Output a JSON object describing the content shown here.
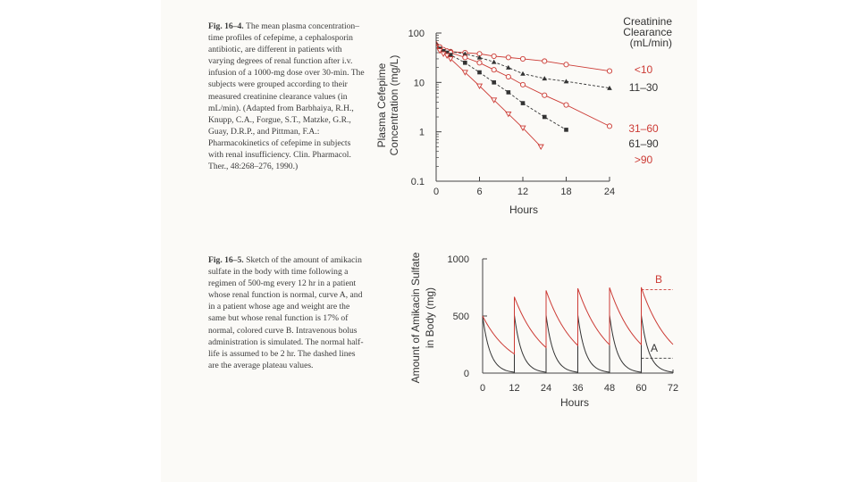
{
  "captions": {
    "fig1": {
      "lead": "Fig. 16–4.",
      "text": "The mean plasma concentration–time profiles of cefepime, a cephalosporin antibiotic, are different in patients with varying degrees of renal function after i.v. infusion of a 1000-mg dose over 30-min. The subjects were grouped according to their measured creatinine clearance values (in mL/min). (Adapted from Barbhaiya, R.H., Knupp, C.A., Forgue, S.T., Matzke, G.R., Guay, D.R.P., and Pittman, F.A.: Pharmacokinetics of cefepime in subjects with renal insufficiency. Clin. Pharmacol. Ther., 48:268–276, 1990.)"
    },
    "fig2": {
      "lead": "Fig. 16–5.",
      "text": "Sketch of the amount of amikacin sulfate in the body with time following a regimen of 500-mg every 12 hr in a patient whose renal function is normal, curve A, and in a patient whose age and weight are the same but whose renal function is 17% of normal, colored curve B. Intravenous bolus administration is simulated. The normal half-life is assumed to be 2 hr. The dashed lines are the average plateau values."
    }
  },
  "colors": {
    "red": "#cc3b35",
    "black": "#333333"
  },
  "chart_data": [
    {
      "type": "line",
      "ylabel_line1": "Plasma Cefepime",
      "ylabel_line2": "Concentration (mg/L)",
      "xlabel": "Hours",
      "log_y": true,
      "ylim": [
        0.1,
        100
      ],
      "xlim": [
        0,
        24
      ],
      "x_ticks": [
        0,
        6,
        12,
        18,
        24
      ],
      "y_ticks": [
        {
          "v": 100,
          "label": "100"
        },
        {
          "v": 10,
          "label": "10"
        },
        {
          "v": 1,
          "label": "1"
        },
        {
          "v": 0.1,
          "label": "0.1"
        }
      ],
      "legend_title": [
        "Creatinine",
        "Clearance",
        "(mL/min)"
      ],
      "series": [
        {
          "name": "<10",
          "color": "#cc3b35",
          "marker": "circle-open",
          "dash": false,
          "x": [
            0,
            0.5,
            1,
            1.5,
            2,
            4,
            6,
            8,
            10,
            12,
            15,
            18,
            24
          ],
          "y": [
            64,
            50,
            45,
            43,
            42,
            40,
            38,
            34,
            32,
            30,
            27,
            23,
            17
          ]
        },
        {
          "name": "11–30",
          "color": "#333333",
          "marker": "triangle-filled",
          "dash": true,
          "x": [
            0,
            0.5,
            1,
            1.5,
            2,
            4,
            6,
            8,
            10,
            12,
            15,
            18,
            24
          ],
          "y": [
            68,
            52,
            46,
            44,
            42,
            38,
            32,
            26,
            20,
            15,
            12,
            10.5,
            7.7
          ]
        },
        {
          "name": "31–60",
          "color": "#cc3b35",
          "marker": "circle-open",
          "dash": false,
          "x": [
            0,
            0.5,
            1,
            1.5,
            2,
            4,
            6,
            8,
            10,
            12,
            15,
            18,
            24
          ],
          "y": [
            68,
            52,
            46,
            43,
            40,
            32,
            25,
            18,
            13,
            9,
            5.5,
            3.5,
            1.3
          ]
        },
        {
          "name": "61–90",
          "color": "#333333",
          "marker": "square-filled",
          "dash": true,
          "x": [
            0,
            0.5,
            1,
            1.5,
            2,
            4,
            6,
            8,
            10,
            12,
            15,
            18
          ],
          "y": [
            65,
            48,
            43,
            40,
            36,
            25,
            16,
            10,
            6.3,
            3.8,
            2.0,
            1.1
          ]
        },
        {
          "name": ">90",
          "color": "#cc3b35",
          "marker": "triangle-open",
          "dash": false,
          "x": [
            0,
            0.5,
            1,
            1.5,
            2,
            4,
            6,
            8,
            10,
            12,
            14.5
          ],
          "y": [
            60,
            44,
            38,
            35,
            30,
            16,
            8.5,
            4.4,
            2.3,
            1.2,
            0.5
          ]
        }
      ]
    },
    {
      "type": "line",
      "ylabel_line1": "Amount of Amikacin Sulfate",
      "ylabel_line2": "in Body (mg)",
      "xlabel": "Hours",
      "xlim": [
        0,
        72
      ],
      "ylim": [
        0,
        1000
      ],
      "x_ticks": [
        0,
        12,
        24,
        36,
        48,
        60,
        72
      ],
      "y_ticks": [
        0,
        500,
        1000
      ],
      "dose_mg": 500,
      "interval_hr": 12,
      "curves": [
        {
          "name": "A",
          "color": "#333333",
          "half_life_hr": 2,
          "plateau_mg": 130
        },
        {
          "name": "B",
          "color": "#cc3b35",
          "half_life_hr": 7.6,
          "plateau_mg": 730
        }
      ]
    }
  ]
}
